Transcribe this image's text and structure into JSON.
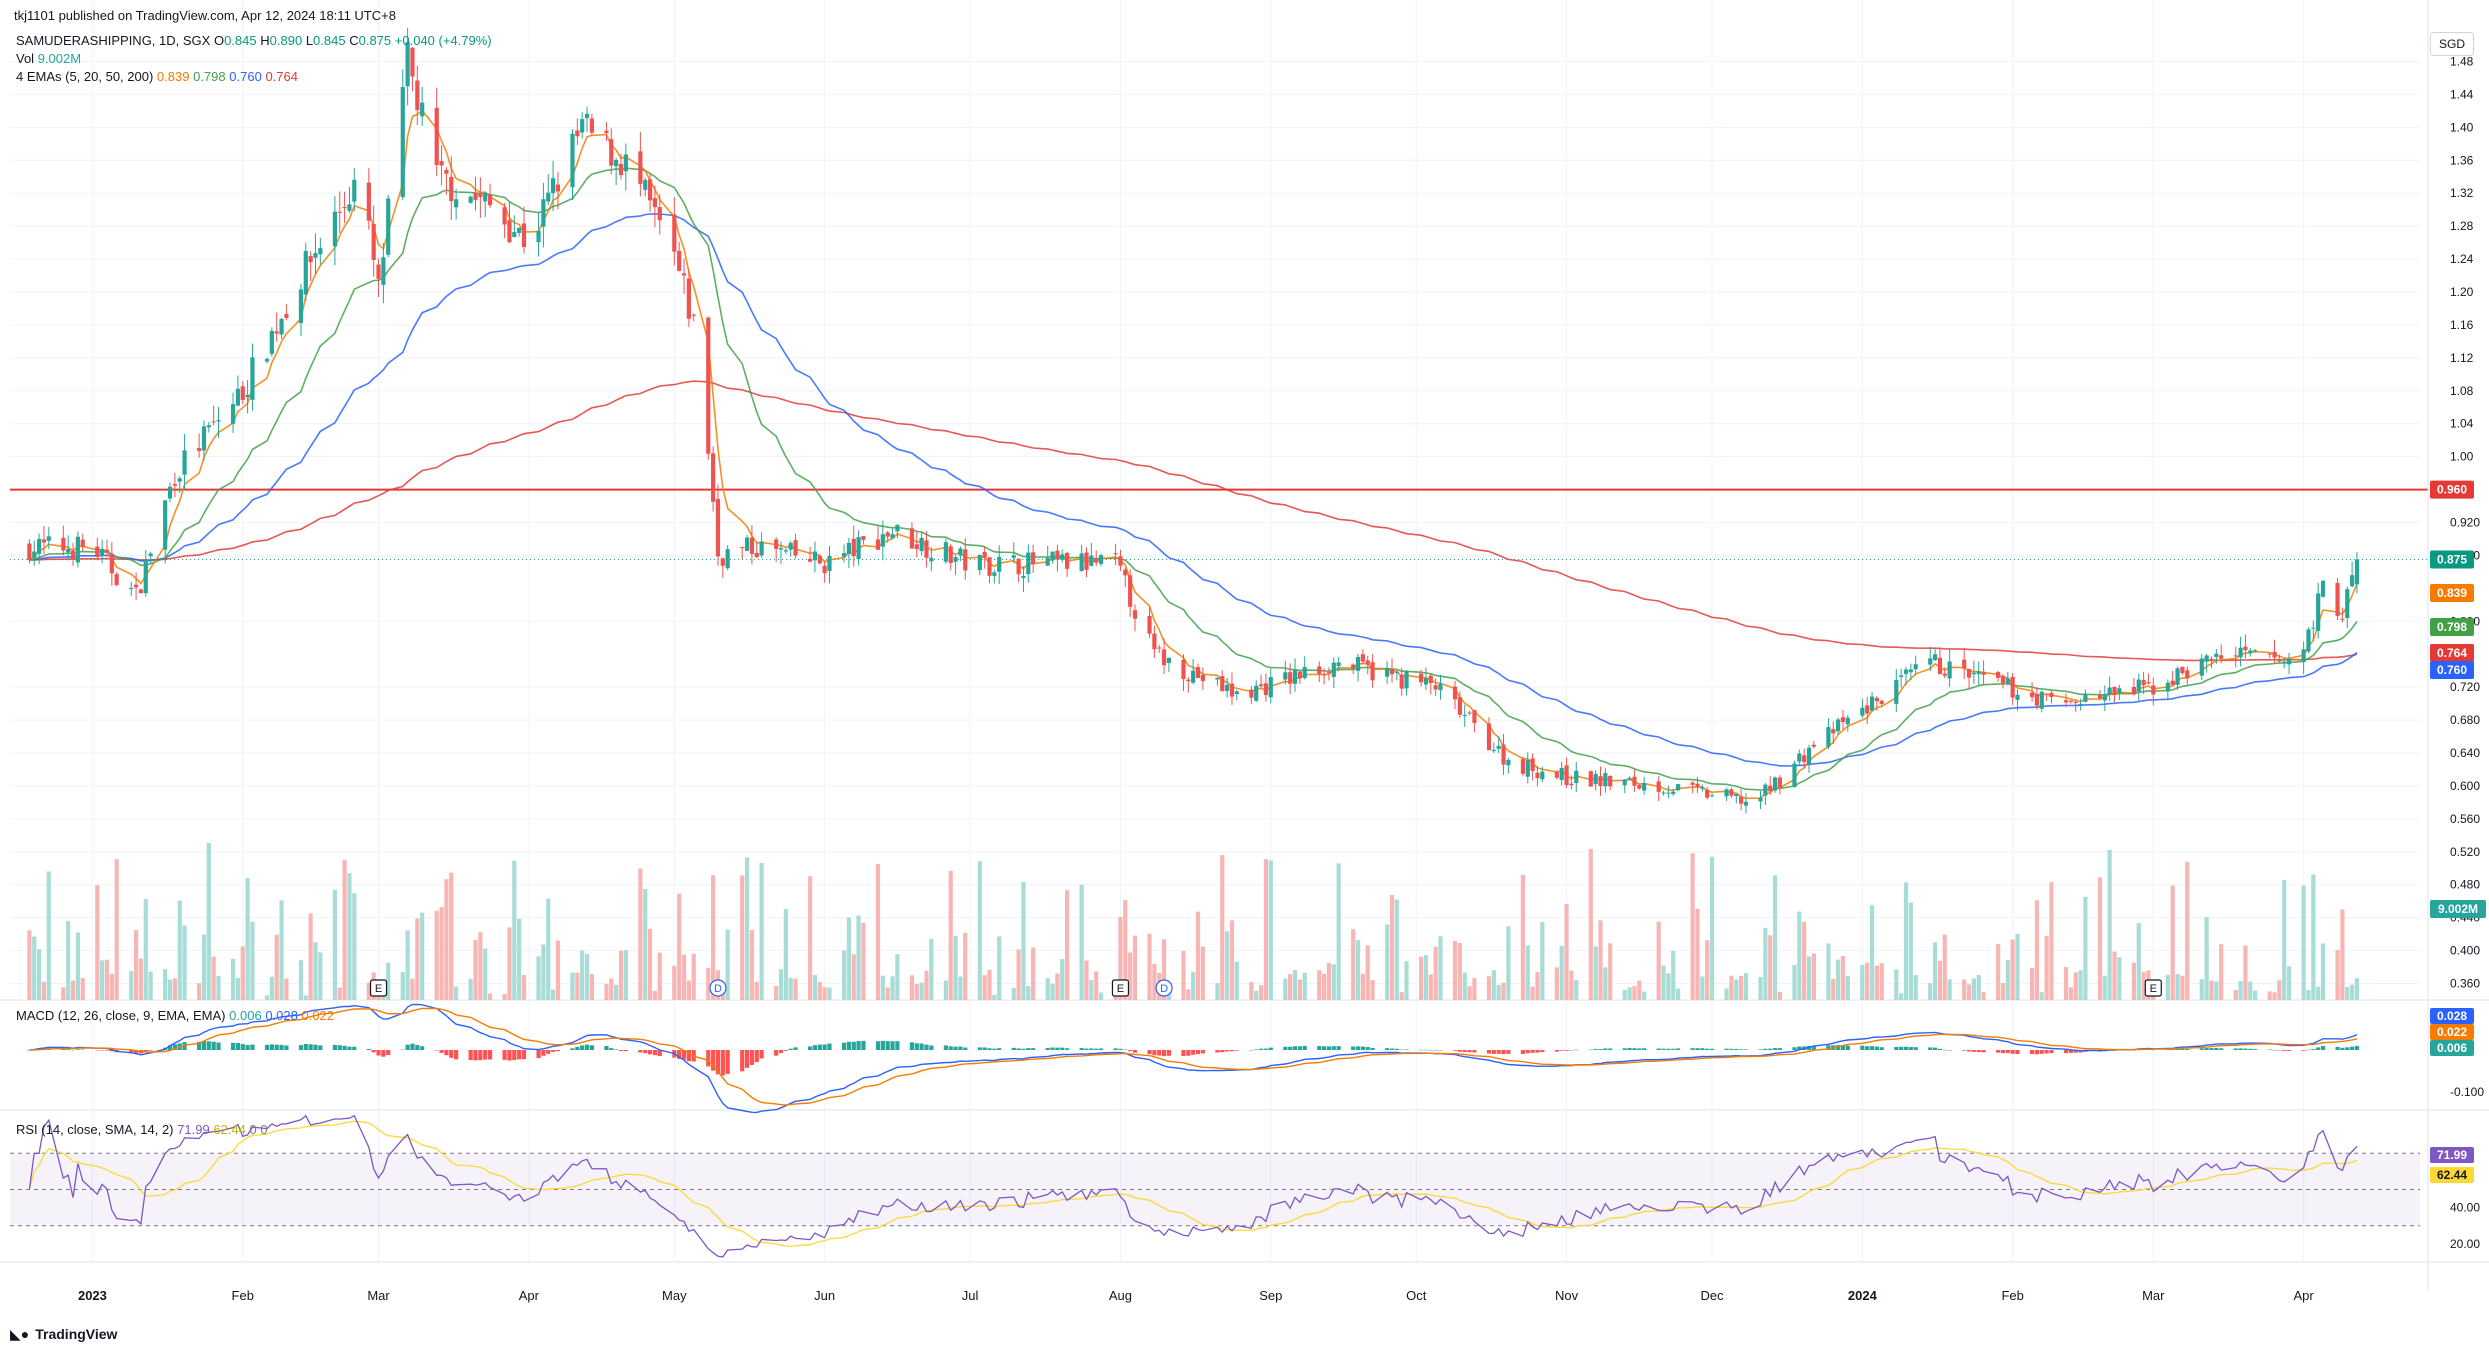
{
  "header": {
    "text": "tkj1101 published on TradingView.com, Apr 12, 2024 18:11 UTC+8"
  },
  "legend": {
    "symbol": "SAMUDERASHIPPING, 1D, SGX",
    "o_label": "O",
    "o": "0.845",
    "h_label": "H",
    "h": "0.890",
    "l_label": "L",
    "l": "0.845",
    "c_label": "C",
    "c": "0.875",
    "change": "+0.040 (+4.79%)",
    "vol_label": "Vol",
    "vol": "9.002M",
    "ema_label": "4 EMAs (5, 20, 50, 200)",
    "ema5": "0.839",
    "ema20": "0.798",
    "ema50": "0.760",
    "ema200": "0.764"
  },
  "currency": "SGD",
  "macd_legend": {
    "label": "MACD (12, 26, close, 9, EMA, EMA)",
    "hist": "0.006",
    "macd": "0.028",
    "signal": "0.022"
  },
  "rsi_legend": {
    "label": "RSI (14, close, SMA, 14, 2)",
    "rsi": "71.99",
    "sma": "62.44",
    "extra1": "0",
    "extra2": "0"
  },
  "footer": {
    "brand": "TradingView"
  },
  "colors": {
    "up": "#26a69a",
    "down": "#ef5350",
    "ema5": "#f57c00",
    "ema20": "#43a047",
    "ema50": "#2962ff",
    "ema200": "#e53935",
    "hline": "#e53935",
    "macd": "#2962ff",
    "signal": "#f57c00",
    "rsi": "#7e57c2",
    "rsi_sma": "#fdd835"
  },
  "chart_data": {
    "type": "candlestick",
    "price_axis": {
      "min": 0.34,
      "max": 1.5,
      "ticks": [
        "1.48",
        "1.44",
        "1.40",
        "1.36",
        "1.32",
        "1.28",
        "1.24",
        "1.20",
        "1.16",
        "1.12",
        "1.08",
        "1.04",
        "1.00",
        "0.920",
        "0.880",
        "0.800",
        "0.720",
        "0.680",
        "0.640",
        "0.600",
        "0.560",
        "0.520",
        "0.480",
        "0.440",
        "0.400",
        "0.360"
      ]
    },
    "time_axis": [
      "2023",
      "Feb",
      "Mar",
      "Apr",
      "May",
      "Jun",
      "Jul",
      "Aug",
      "Sep",
      "Oct",
      "Nov",
      "Dec",
      "2024",
      "Feb",
      "Mar",
      "Apr"
    ],
    "horizontal_line": {
      "value": 0.96,
      "label": "0.960"
    },
    "last_price": {
      "value": 0.875,
      "label": "0.875"
    },
    "ema_tags": [
      {
        "name": "ema5",
        "value": 0.839,
        "label": "0.839"
      },
      {
        "name": "ema20",
        "value": 0.798,
        "label": "0.798"
      },
      {
        "name": "ema200",
        "value": 0.764,
        "label": "0.764"
      },
      {
        "name": "ema50",
        "value": 0.76,
        "label": "0.760"
      }
    ],
    "volume_tag": "9.002M",
    "close_anchors": [
      [
        "2023-01-01",
        0.89
      ],
      [
        "2023-01-10",
        0.83
      ],
      [
        "2023-01-18",
        0.98
      ],
      [
        "2023-02-01",
        1.08
      ],
      [
        "2023-02-15",
        1.24
      ],
      [
        "2023-02-25",
        1.34
      ],
      [
        "2023-03-01",
        1.2
      ],
      [
        "2023-03-07",
        1.48
      ],
      [
        "2023-03-13",
        1.34
      ],
      [
        "2023-03-25",
        1.3
      ],
      [
        "2023-04-01",
        1.26
      ],
      [
        "2023-04-12",
        1.4
      ],
      [
        "2023-04-22",
        1.35
      ],
      [
        "2023-05-01",
        1.24
      ],
      [
        "2023-05-06",
        1.14
      ],
      [
        "2023-05-10",
        0.88
      ],
      [
        "2023-05-18",
        0.89
      ],
      [
        "2023-06-01",
        0.87
      ],
      [
        "2023-06-15",
        0.91
      ],
      [
        "2023-07-01",
        0.87
      ],
      [
        "2023-07-31",
        0.87
      ],
      [
        "2023-08-08",
        0.76
      ],
      [
        "2023-08-25",
        0.71
      ],
      [
        "2023-09-15",
        0.75
      ],
      [
        "2023-10-05",
        0.72
      ],
      [
        "2023-10-20",
        0.63
      ],
      [
        "2023-11-01",
        0.61
      ],
      [
        "2023-11-20",
        0.6
      ],
      [
        "2023-12-10",
        0.58
      ],
      [
        "2023-12-22",
        0.65
      ],
      [
        "2024-01-15",
        0.75
      ],
      [
        "2024-01-25",
        0.73
      ],
      [
        "2024-02-10",
        0.7
      ],
      [
        "2024-03-01",
        0.72
      ],
      [
        "2024-03-15",
        0.76
      ],
      [
        "2024-03-31",
        0.75
      ],
      [
        "2024-04-05",
        0.84
      ],
      [
        "2024-04-09",
        0.81
      ],
      [
        "2024-04-12",
        0.875
      ]
    ],
    "macd_axis": {
      "ticks": [
        "0.028",
        "0.022",
        "0.006",
        "-0.100"
      ]
    },
    "rsi_axis": {
      "ticks": [
        "71.99",
        "62.44",
        "40.00",
        "20.00"
      ],
      "bands": [
        70,
        50,
        30
      ]
    }
  }
}
